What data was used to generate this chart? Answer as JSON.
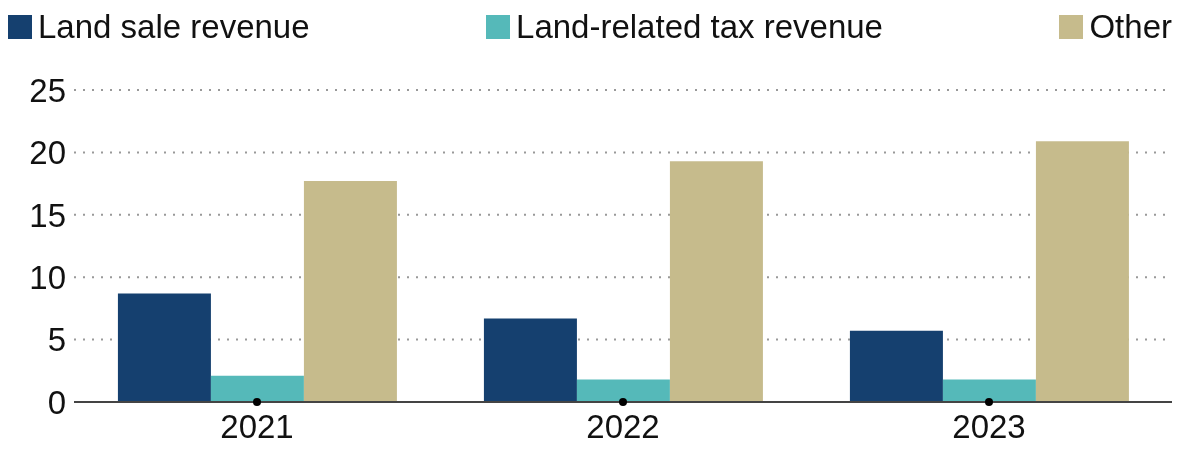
{
  "chart_data": {
    "type": "bar",
    "categories": [
      "2021",
      "2022",
      "2023"
    ],
    "series": [
      {
        "name": "Land sale revenue",
        "color": "#15406f",
        "values": [
          8.7,
          6.7,
          5.7
        ]
      },
      {
        "name": "Land-related tax revenue",
        "color": "#55b9b9",
        "values": [
          2.1,
          1.8,
          1.8
        ]
      },
      {
        "name": "Other",
        "color": "#c6bb8c",
        "values": [
          17.7,
          19.3,
          20.9
        ]
      }
    ],
    "ylim": [
      0,
      25
    ],
    "yticks": [
      0,
      5,
      10,
      15,
      20,
      25
    ],
    "grid": "y",
    "legend": "top"
  }
}
